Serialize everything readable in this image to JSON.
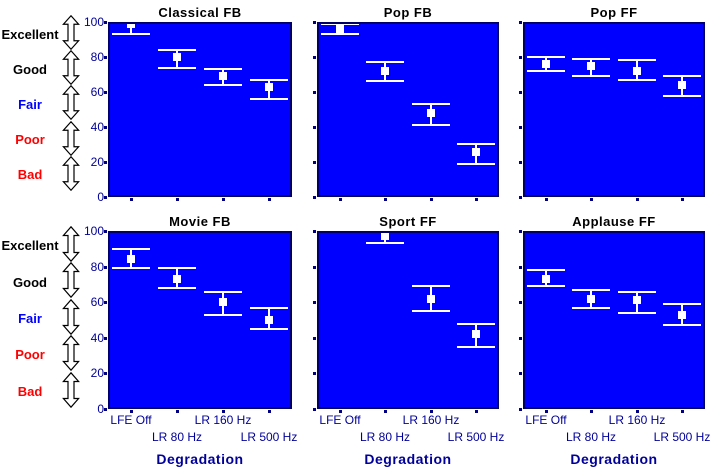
{
  "figure": {
    "background": "#FFFFFF"
  },
  "colors": {
    "plot_bg": "#0000FF",
    "errorbar": "#FFFFFF",
    "frame": "#000066",
    "tick": "#000080",
    "tick_label": "#000099",
    "title": "#000000",
    "axis_label": "#000099"
  },
  "chart_data": {
    "type": "errorbar",
    "layout": "2 rows x 3 columns",
    "categories": [
      "LFE Off",
      "LR 80 Hz",
      "LR 160 Hz",
      "LR 500 Hz"
    ],
    "xlabel": "Degradation",
    "ylim": [
      0,
      100
    ],
    "yticks": [
      0,
      20,
      40,
      60,
      80,
      100
    ],
    "grid": false,
    "legend": "none",
    "quality_scale": [
      {
        "label": "Excellent",
        "band": [
          80,
          100
        ],
        "color": "#000000"
      },
      {
        "label": "Good",
        "band": [
          60,
          80
        ],
        "color": "#000000"
      },
      {
        "label": "Fair",
        "band": [
          40,
          60
        ],
        "color": "#0000FF"
      },
      {
        "label": "Poor",
        "band": [
          20,
          40
        ],
        "color": "#FF0000"
      },
      {
        "label": "Bad",
        "band": [
          0,
          20
        ],
        "color": "#FF0000"
      }
    ],
    "subplots": [
      {
        "title": "Classical FB",
        "points": [
          {
            "value": 99,
            "low": 93,
            "high": 100
          },
          {
            "value": 80,
            "low": 74,
            "high": 84
          },
          {
            "value": 69,
            "low": 64,
            "high": 73
          },
          {
            "value": 63,
            "low": 56,
            "high": 67
          }
        ]
      },
      {
        "title": "Pop FB",
        "points": [
          {
            "value": 96,
            "low": 93,
            "high": 99
          },
          {
            "value": 72,
            "low": 66,
            "high": 77
          },
          {
            "value": 48,
            "low": 41,
            "high": 53
          },
          {
            "value": 26,
            "low": 19,
            "high": 30
          }
        ]
      },
      {
        "title": "Pop FF",
        "points": [
          {
            "value": 76,
            "low": 72,
            "high": 80
          },
          {
            "value": 75,
            "low": 69,
            "high": 79
          },
          {
            "value": 72,
            "low": 67,
            "high": 78
          },
          {
            "value": 64,
            "low": 58,
            "high": 69
          }
        ]
      },
      {
        "title": "Movie FB",
        "points": [
          {
            "value": 84,
            "low": 79,
            "high": 90
          },
          {
            "value": 73,
            "low": 68,
            "high": 79
          },
          {
            "value": 60,
            "low": 53,
            "high": 66
          },
          {
            "value": 50,
            "low": 45,
            "high": 57
          }
        ]
      },
      {
        "title": "Sport FF",
        "points": [
          null,
          {
            "value": 97,
            "low": 93,
            "high": 100
          },
          {
            "value": 62,
            "low": 55,
            "high": 69
          },
          {
            "value": 42,
            "low": 35,
            "high": 48
          }
        ]
      },
      {
        "title": "Applause FF",
        "points": [
          {
            "value": 73,
            "low": 69,
            "high": 78
          },
          {
            "value": 62,
            "low": 57,
            "high": 67
          },
          {
            "value": 61,
            "low": 54,
            "high": 66
          },
          {
            "value": 53,
            "low": 47,
            "high": 59
          }
        ]
      }
    ]
  }
}
